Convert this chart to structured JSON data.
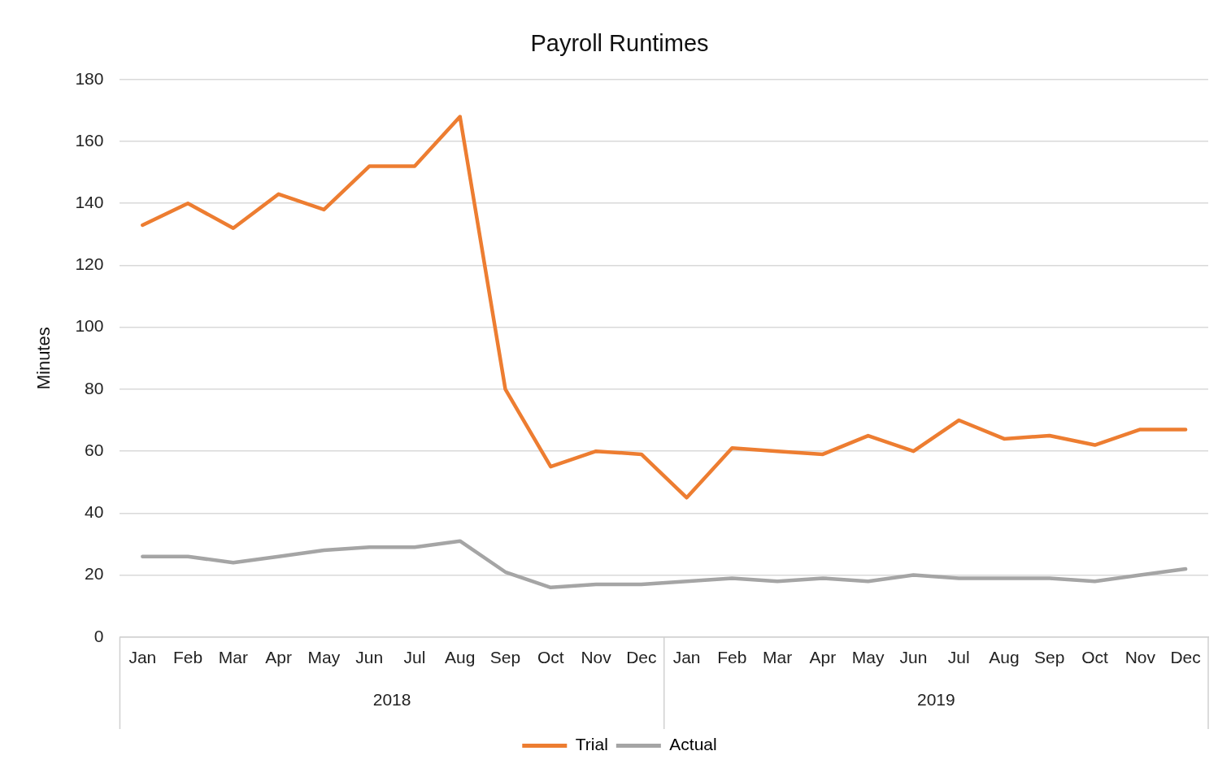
{
  "chart_data": {
    "type": "line",
    "title": "Payroll Runtimes",
    "ylabel": "Minutes",
    "categories": [
      "Jan",
      "Feb",
      "Mar",
      "Apr",
      "May",
      "Jun",
      "Jul",
      "Aug",
      "Sep",
      "Oct",
      "Nov",
      "Dec",
      "Jan",
      "Feb",
      "Mar",
      "Apr",
      "May",
      "Jun",
      "Jul",
      "Aug",
      "Sep",
      "Oct",
      "Nov",
      "Dec"
    ],
    "annotations": [
      "2018",
      "2019"
    ],
    "series": [
      {
        "name": "Trial",
        "color": "#ed7d31",
        "values": [
          133,
          140,
          132,
          143,
          138,
          152,
          152,
          168,
          80,
          55,
          60,
          59,
          45,
          61,
          60,
          59,
          65,
          60,
          70,
          64,
          65,
          62,
          67,
          67
        ]
      },
      {
        "name": "Actual",
        "color": "#a5a5a5",
        "values": [
          26,
          26,
          24,
          26,
          28,
          29,
          29,
          31,
          21,
          16,
          17,
          17,
          18,
          19,
          18,
          19,
          18,
          20,
          19,
          19,
          19,
          18,
          20,
          22
        ]
      }
    ],
    "ylim": [
      0,
      180
    ],
    "yticks": [
      0,
      20,
      40,
      60,
      80,
      100,
      120,
      140,
      160,
      180
    ],
    "grid": "y",
    "legend": "bottom",
    "marker": "none",
    "line_style": "solid"
  }
}
